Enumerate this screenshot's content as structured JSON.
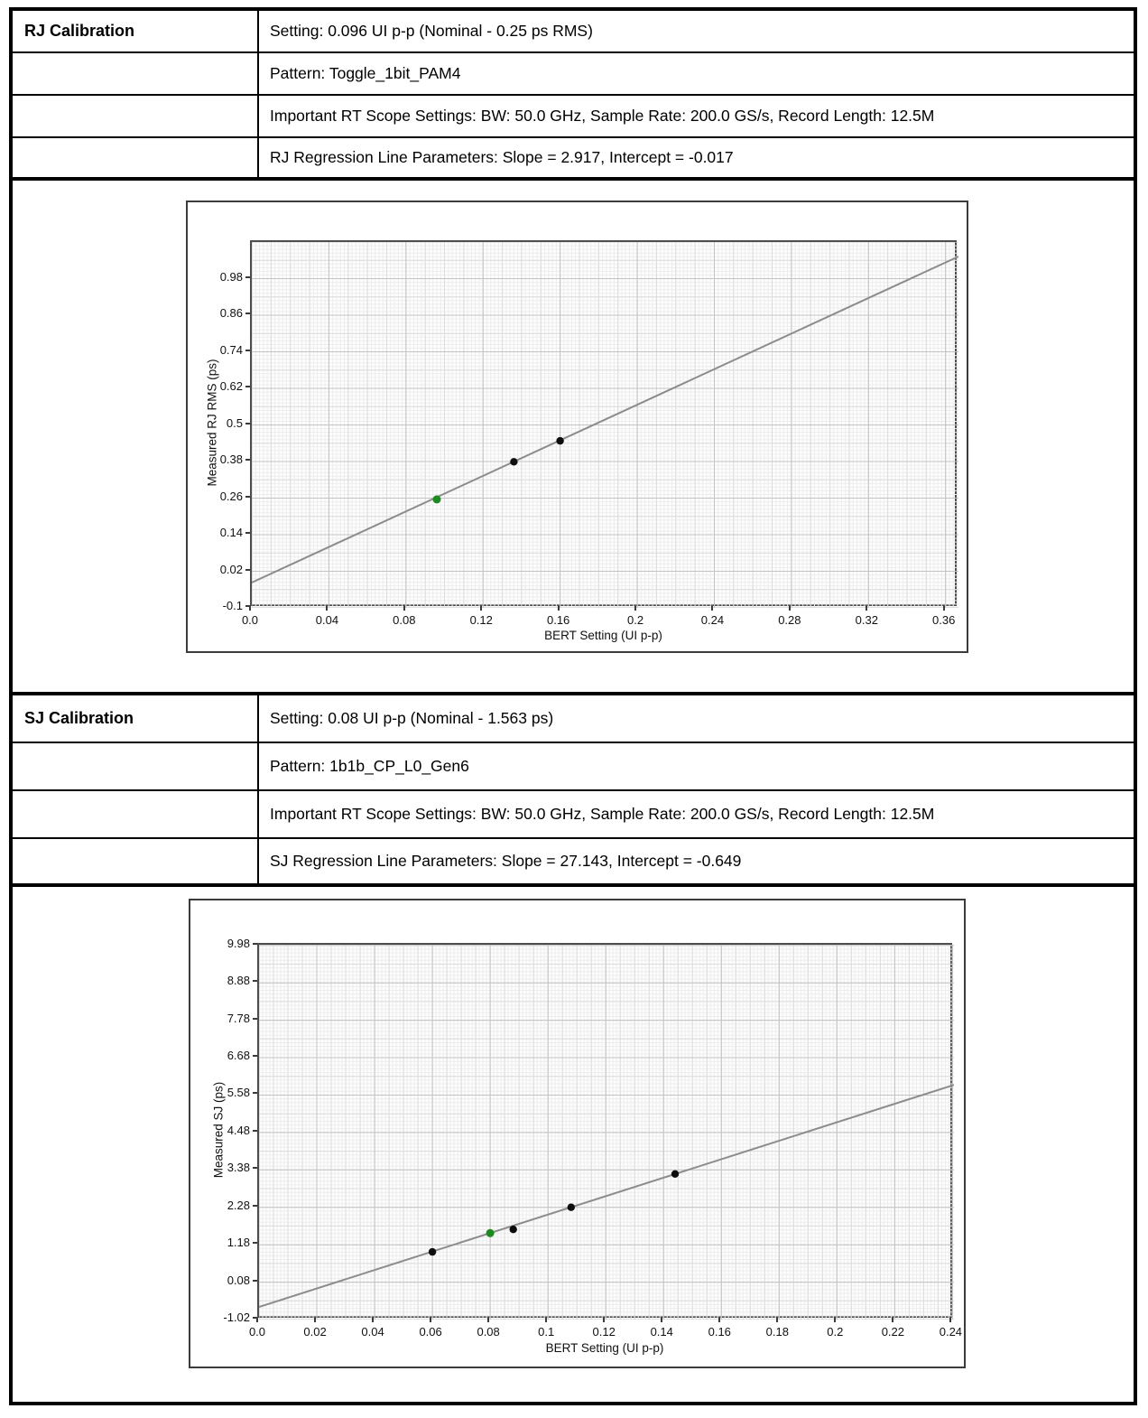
{
  "tables": [
    {
      "title": "RJ Calibration",
      "rows": [
        "Setting: 0.096 UI p-p (Nominal - 0.25 ps RMS)",
        "Pattern: Toggle_1bit_PAM4",
        "Important RT Scope Settings: BW: 50.0 GHz, Sample Rate: 200.0 GS/s, Record Length: 12.5M",
        "RJ Regression Line Parameters: Slope = 2.917, Intercept = -0.017"
      ]
    },
    {
      "title": "SJ Calibration",
      "rows": [
        "Setting: 0.08 UI p-p (Nominal - 1.563 ps)",
        "Pattern: 1b1b_CP_L0_Gen6",
        "Important RT Scope Settings: BW: 50.0 GHz, Sample Rate: 200.0 GS/s, Record Length: 12.5M",
        "SJ Regression Line Parameters: Slope = 27.143, Intercept = -0.649"
      ]
    }
  ],
  "colors": {
    "nominal_point": "#1e8b22",
    "measured_point": "#0d0d0d",
    "regression_line": "#8c8c8c",
    "grid_major": "#c3c3c3",
    "grid_mid": "#dcdcdc",
    "grid_fine": "#ededed"
  },
  "chart_data": [
    {
      "type": "scatter",
      "title": "RJ Calibration regression",
      "xlabel": "BERT Setting (UI p-p)",
      "ylabel": "Measured RJ RMS (ps)",
      "xlim": [
        0,
        0.3667
      ],
      "ylim": [
        -0.1,
        1.1
      ],
      "xticks": [
        0,
        0.04,
        0.08,
        0.12,
        0.16,
        0.2,
        0.24,
        0.28,
        0.32,
        0.36
      ],
      "xtick_labels": [
        "0.0",
        "0.04",
        "0.08",
        "0.12",
        "0.16",
        "0.2",
        "0.24",
        "0.28",
        "0.32",
        "0.36"
      ],
      "yticks": [
        -0.1,
        0.02,
        0.14,
        0.26,
        0.38,
        0.5,
        0.62,
        0.74,
        0.86,
        0.98
      ],
      "ytick_labels": [
        "-0.1",
        "0.02",
        "0.14",
        "0.26",
        "0.38",
        "0.5",
        "0.62",
        "0.74",
        "0.86",
        "0.98"
      ],
      "grid": true,
      "legend": false,
      "regression_line": {
        "slope": 2.917,
        "intercept": -0.017
      },
      "points": [
        {
          "x": 0.096,
          "y": 0.256,
          "series": "nominal",
          "color": "#1e8b22"
        },
        {
          "x": 0.136,
          "y": 0.379,
          "series": "measured",
          "color": "#0d0d0d"
        },
        {
          "x": 0.16,
          "y": 0.448,
          "series": "measured",
          "color": "#0d0d0d"
        }
      ],
      "x_minor_step": 0.002,
      "x_mid_step": 0.01,
      "y_minor_step": 0.012,
      "y_mid_step": 0.06
    },
    {
      "type": "scatter",
      "title": "SJ Calibration regression",
      "xlabel": "BERT Setting (UI p-p)",
      "ylabel": "Measured SJ (ps)",
      "xlim": [
        0,
        0.2405
      ],
      "ylim": [
        -1.02,
        10.0
      ],
      "xticks": [
        0,
        0.02,
        0.04,
        0.06,
        0.08,
        0.1,
        0.12,
        0.14,
        0.16,
        0.18,
        0.2,
        0.22,
        0.24
      ],
      "xtick_labels": [
        "0.0",
        "0.02",
        "0.04",
        "0.06",
        "0.08",
        "0.1",
        "0.12",
        "0.14",
        "0.16",
        "0.18",
        "0.2",
        "0.22",
        "0.24"
      ],
      "yticks": [
        -1.02,
        0.08,
        1.18,
        2.28,
        3.38,
        4.48,
        5.58,
        6.68,
        7.78,
        8.88,
        9.98
      ],
      "ytick_labels": [
        "-1.02",
        "0.08",
        "1.18",
        "2.28",
        "3.38",
        "4.48",
        "5.58",
        "6.68",
        "7.78",
        "8.88",
        "9.98"
      ],
      "grid": true,
      "legend": false,
      "regression_line": {
        "slope": 27.143,
        "intercept": -0.649
      },
      "points": [
        {
          "x": 0.06,
          "y": 0.97,
          "series": "measured",
          "color": "#0d0d0d"
        },
        {
          "x": 0.08,
          "y": 1.52,
          "series": "nominal",
          "color": "#1e8b22"
        },
        {
          "x": 0.088,
          "y": 1.63,
          "series": "measured",
          "color": "#0d0d0d"
        },
        {
          "x": 0.108,
          "y": 2.28,
          "series": "measured",
          "color": "#0d0d0d"
        },
        {
          "x": 0.144,
          "y": 3.26,
          "series": "measured",
          "color": "#0d0d0d"
        }
      ],
      "x_minor_step": 0.00125,
      "x_mid_step": 0.005,
      "y_minor_step": 0.11,
      "y_mid_step": 0.55
    }
  ]
}
